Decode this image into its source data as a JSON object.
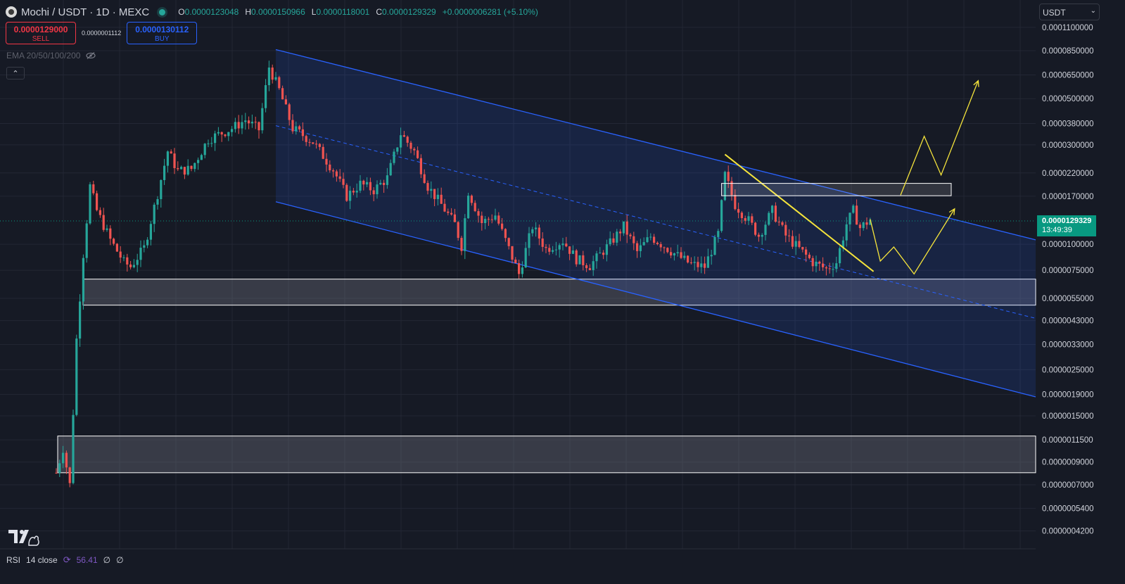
{
  "header": {
    "symbol": "Mochi / USDT · 1D · MEXC",
    "ohlc": {
      "o_label": "O",
      "o": "0.0000123048",
      "h_label": "H",
      "h": "0.0000150966",
      "l_label": "L",
      "l": "0.0000118001",
      "c_label": "C",
      "c": "0.0000129329",
      "change": "+0.0000006281 (+5.10%)"
    }
  },
  "trade": {
    "sell_price": "0.0000129000",
    "sell_label": "SELL",
    "spread": "0.0000001112",
    "buy_price": "0.0000130112",
    "buy_label": "BUY"
  },
  "indicator_label": "EMA 20/50/100/200",
  "currency": "USDT",
  "last_price": {
    "value": "0.0000129329",
    "countdown": "13:49:39"
  },
  "rsi": {
    "label": "RSI",
    "params": "14 close",
    "value": "56.41",
    "extra1": "∅",
    "extra2": "∅"
  },
  "colors": {
    "bg": "#161a25",
    "up": "#26a69a",
    "down": "#ef5350",
    "channel": "#2962ff",
    "annotation": "#f5e43b",
    "zone": "#ffffff"
  },
  "icons": {
    "logo": "mochi-coin-icon",
    "live": "live-dot-icon",
    "eye": "eye-hidden-icon",
    "collapse": "chevron-up-icon",
    "rsi": "rsi-settings-icon",
    "brand": "tradingview-logo-icon"
  },
  "chart_data": {
    "type": "candlestick",
    "y_scale": "log",
    "y_ticks": [
      "0.0001100000",
      "0.0000850000",
      "0.0000650000",
      "0.0000500000",
      "0.0000380000",
      "0.0000300000",
      "0.0000220000",
      "0.0000170000",
      "0.0000100000",
      "0.0000075000",
      "0.0000055000",
      "0.0000043000",
      "0.0000033000",
      "0.0000025000",
      "0.0000019000",
      "0.0000015000",
      "0.0000011500",
      "0.0000009000",
      "0.0000007000",
      "0.0000005400",
      "0.0000004200"
    ],
    "y_tick_values": [
      0.00011,
      8.5e-05,
      6.5e-05,
      5e-05,
      3.8e-05,
      3e-05,
      2.2e-05,
      1.7e-05,
      1e-05,
      7.5e-06,
      5.5e-06,
      4.3e-06,
      3.3e-06,
      2.5e-06,
      1.9e-06,
      1.5e-06,
      1.15e-06,
      9e-07,
      7e-07,
      5.4e-07,
      4.2e-07
    ],
    "path_points": [
      [
        0,
        8e-07
      ],
      [
        2,
        1.05e-06
      ],
      [
        4,
        7e-07
      ],
      [
        6,
        3.5e-06
      ],
      [
        8,
        9e-06
      ],
      [
        10,
        1.9e-05
      ],
      [
        12,
        1.45e-05
      ],
      [
        16,
        1.05e-05
      ],
      [
        20,
        8.2e-06
      ],
      [
        22,
        7.8e-06
      ],
      [
        26,
        9.6e-06
      ],
      [
        30,
        1.75e-05
      ],
      [
        33,
        2.8e-05
      ],
      [
        36,
        2.25e-05
      ],
      [
        40,
        2.3e-05
      ],
      [
        45,
        3.2e-05
      ],
      [
        52,
        3.6e-05
      ],
      [
        56,
        3.95e-05
      ],
      [
        60,
        3.55e-05
      ],
      [
        63,
        7.1e-05
      ],
      [
        66,
        5.5e-05
      ],
      [
        70,
        3.6e-05
      ],
      [
        76,
        3.1e-05
      ],
      [
        82,
        2.28e-05
      ],
      [
        86,
        1.7e-05
      ],
      [
        90,
        1.95e-05
      ],
      [
        94,
        1.82e-05
      ],
      [
        98,
        2.08e-05
      ],
      [
        102,
        3.4e-05
      ],
      [
        106,
        2.8e-05
      ],
      [
        110,
        1.9e-05
      ],
      [
        114,
        1.55e-05
      ],
      [
        118,
        1.25e-05
      ],
      [
        120,
        9.8e-06
      ],
      [
        122,
        1.8e-05
      ],
      [
        126,
        1.27e-05
      ],
      [
        130,
        1.38e-05
      ],
      [
        134,
        9.5e-06
      ],
      [
        137,
        7.2e-06
      ],
      [
        141,
        1.22e-05
      ],
      [
        145,
        9.5e-06
      ],
      [
        150,
        1.04e-05
      ],
      [
        154,
        8.5e-06
      ],
      [
        158,
        7.9e-06
      ],
      [
        164,
        1.01e-05
      ],
      [
        168,
        1.22e-05
      ],
      [
        172,
        9.2e-06
      ],
      [
        176,
        1.09e-05
      ],
      [
        180,
        9.8e-06
      ],
      [
        184,
        8.8e-06
      ],
      [
        188,
        8e-06
      ],
      [
        192,
        7.8e-06
      ],
      [
        196,
        1.12e-05
      ],
      [
        198,
        2.15e-05
      ],
      [
        201,
        1.55e-05
      ],
      [
        205,
        1.3e-05
      ],
      [
        208,
        1.1e-05
      ],
      [
        212,
        1.45e-05
      ],
      [
        216,
        1.1e-05
      ],
      [
        220,
        9.5e-06
      ],
      [
        224,
        8.2e-06
      ],
      [
        228,
        7.6e-06
      ],
      [
        231,
        8.2e-06
      ],
      [
        234,
        1.25e-05
      ],
      [
        236,
        1.45e-05
      ],
      [
        238,
        1.2e-05
      ],
      [
        241,
        1.31e-05
      ]
    ],
    "pattern": "descending channel with horizontal support zones",
    "projection": "breakout arrows"
  }
}
